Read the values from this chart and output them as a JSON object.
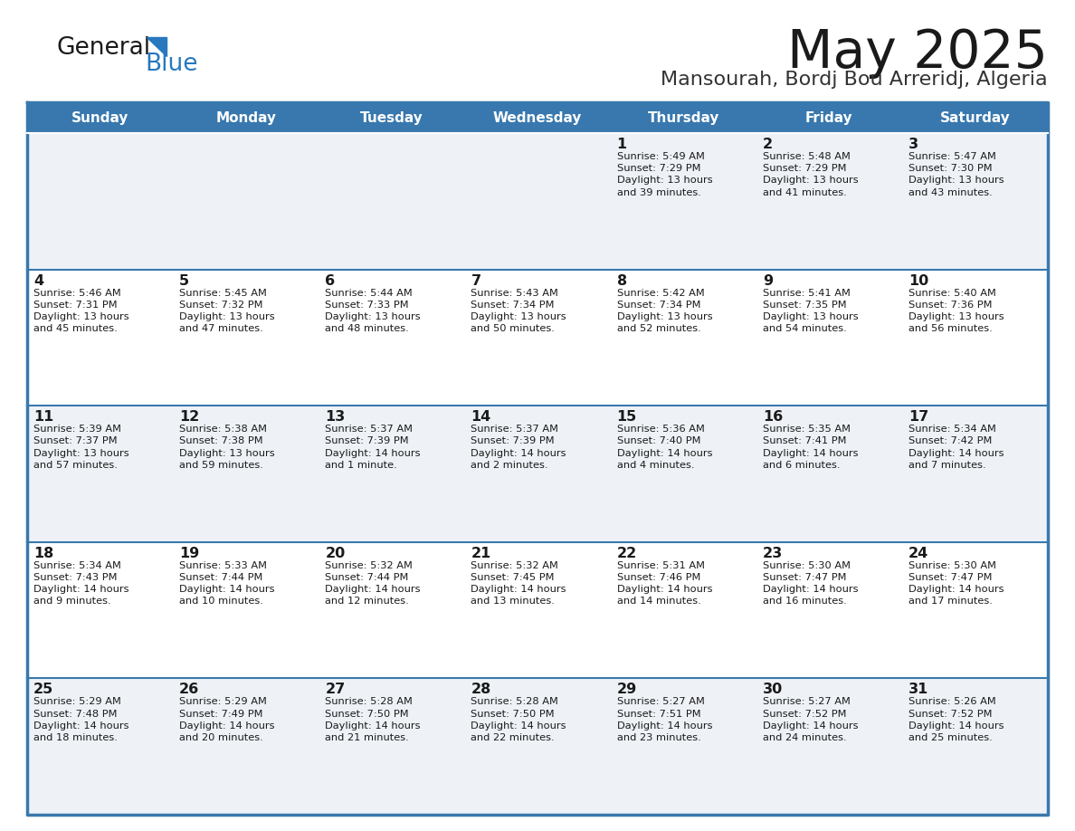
{
  "title": "May 2025",
  "subtitle": "Mansourah, Bordj Bou Arreridj, Algeria",
  "days_of_week": [
    "Sunday",
    "Monday",
    "Tuesday",
    "Wednesday",
    "Thursday",
    "Friday",
    "Saturday"
  ],
  "header_bg": "#3878ae",
  "header_text": "#ffffff",
  "row_bg_odd": "#eef2f7",
  "row_bg_even": "#ffffff",
  "cell_border": "#3878ae",
  "title_color": "#1a1a1a",
  "subtitle_color": "#333333",
  "text_color": "#1a1a1a",
  "logo_general_color": "#1a1a1a",
  "logo_blue_color": "#2878be",
  "logo_triangle_color": "#2878be",
  "calendar_data": [
    [
      "",
      "",
      "",
      "",
      "1\nSunrise: 5:49 AM\nSunset: 7:29 PM\nDaylight: 13 hours\nand 39 minutes.",
      "2\nSunrise: 5:48 AM\nSunset: 7:29 PM\nDaylight: 13 hours\nand 41 minutes.",
      "3\nSunrise: 5:47 AM\nSunset: 7:30 PM\nDaylight: 13 hours\nand 43 minutes."
    ],
    [
      "4\nSunrise: 5:46 AM\nSunset: 7:31 PM\nDaylight: 13 hours\nand 45 minutes.",
      "5\nSunrise: 5:45 AM\nSunset: 7:32 PM\nDaylight: 13 hours\nand 47 minutes.",
      "6\nSunrise: 5:44 AM\nSunset: 7:33 PM\nDaylight: 13 hours\nand 48 minutes.",
      "7\nSunrise: 5:43 AM\nSunset: 7:34 PM\nDaylight: 13 hours\nand 50 minutes.",
      "8\nSunrise: 5:42 AM\nSunset: 7:34 PM\nDaylight: 13 hours\nand 52 minutes.",
      "9\nSunrise: 5:41 AM\nSunset: 7:35 PM\nDaylight: 13 hours\nand 54 minutes.",
      "10\nSunrise: 5:40 AM\nSunset: 7:36 PM\nDaylight: 13 hours\nand 56 minutes."
    ],
    [
      "11\nSunrise: 5:39 AM\nSunset: 7:37 PM\nDaylight: 13 hours\nand 57 minutes.",
      "12\nSunrise: 5:38 AM\nSunset: 7:38 PM\nDaylight: 13 hours\nand 59 minutes.",
      "13\nSunrise: 5:37 AM\nSunset: 7:39 PM\nDaylight: 14 hours\nand 1 minute.",
      "14\nSunrise: 5:37 AM\nSunset: 7:39 PM\nDaylight: 14 hours\nand 2 minutes.",
      "15\nSunrise: 5:36 AM\nSunset: 7:40 PM\nDaylight: 14 hours\nand 4 minutes.",
      "16\nSunrise: 5:35 AM\nSunset: 7:41 PM\nDaylight: 14 hours\nand 6 minutes.",
      "17\nSunrise: 5:34 AM\nSunset: 7:42 PM\nDaylight: 14 hours\nand 7 minutes."
    ],
    [
      "18\nSunrise: 5:34 AM\nSunset: 7:43 PM\nDaylight: 14 hours\nand 9 minutes.",
      "19\nSunrise: 5:33 AM\nSunset: 7:44 PM\nDaylight: 14 hours\nand 10 minutes.",
      "20\nSunrise: 5:32 AM\nSunset: 7:44 PM\nDaylight: 14 hours\nand 12 minutes.",
      "21\nSunrise: 5:32 AM\nSunset: 7:45 PM\nDaylight: 14 hours\nand 13 minutes.",
      "22\nSunrise: 5:31 AM\nSunset: 7:46 PM\nDaylight: 14 hours\nand 14 minutes.",
      "23\nSunrise: 5:30 AM\nSunset: 7:47 PM\nDaylight: 14 hours\nand 16 minutes.",
      "24\nSunrise: 5:30 AM\nSunset: 7:47 PM\nDaylight: 14 hours\nand 17 minutes."
    ],
    [
      "25\nSunrise: 5:29 AM\nSunset: 7:48 PM\nDaylight: 14 hours\nand 18 minutes.",
      "26\nSunrise: 5:29 AM\nSunset: 7:49 PM\nDaylight: 14 hours\nand 20 minutes.",
      "27\nSunrise: 5:28 AM\nSunset: 7:50 PM\nDaylight: 14 hours\nand 21 minutes.",
      "28\nSunrise: 5:28 AM\nSunset: 7:50 PM\nDaylight: 14 hours\nand 22 minutes.",
      "29\nSunrise: 5:27 AM\nSunset: 7:51 PM\nDaylight: 14 hours\nand 23 minutes.",
      "30\nSunrise: 5:27 AM\nSunset: 7:52 PM\nDaylight: 14 hours\nand 24 minutes.",
      "31\nSunrise: 5:26 AM\nSunset: 7:52 PM\nDaylight: 14 hours\nand 25 minutes."
    ]
  ]
}
